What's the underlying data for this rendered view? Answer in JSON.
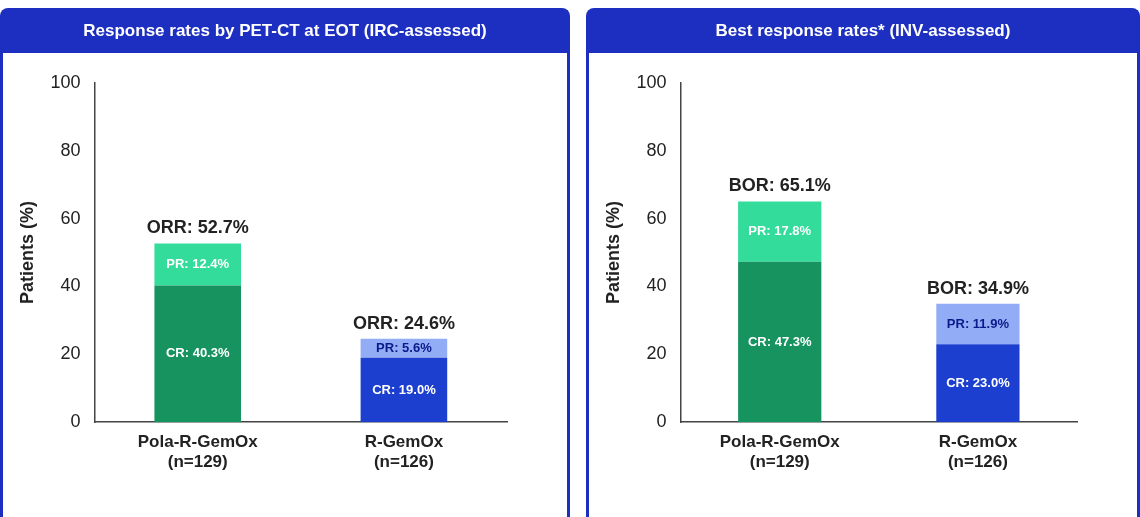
{
  "chart_data": [
    {
      "type": "bar",
      "title": "Response rates by PET-CT at EOT (IRC-assessed)",
      "ylabel": "Patients (%)",
      "categories": [
        "Pola-R-GemOx\n(n=129)",
        "R-GemOx\n(n=126)"
      ],
      "stacked": true,
      "ylim": [
        0,
        100
      ],
      "yticks": [
        0,
        20,
        40,
        60,
        80,
        100
      ],
      "series": [
        {
          "values": [
            40.3,
            19.0
          ],
          "colors": [
            "#17935f",
            "#1d3fcf"
          ],
          "value_labels": [
            "CR: 40.3%",
            "CR: 19.0%"
          ]
        },
        {
          "values": [
            12.4,
            5.6
          ],
          "colors": [
            "#33dc9a",
            "#93acf6"
          ],
          "value_labels": [
            "PR: 12.4%",
            "PR: 5.6%"
          ]
        }
      ],
      "totals": [
        "ORR: 52.7%",
        "ORR: 24.6%"
      ]
    },
    {
      "type": "bar",
      "title": "Best response rates* (INV-assessed)",
      "ylabel": "Patients (%)",
      "categories": [
        "Pola-R-GemOx\n(n=129)",
        "R-GemOx\n(n=126)"
      ],
      "stacked": true,
      "ylim": [
        0,
        100
      ],
      "yticks": [
        0,
        20,
        40,
        60,
        80,
        100
      ],
      "series": [
        {
          "values": [
            47.3,
            23.0
          ],
          "colors": [
            "#17935f",
            "#1d3fcf"
          ],
          "value_labels": [
            "CR: 47.3%",
            "CR: 23.0%"
          ]
        },
        {
          "values": [
            17.8,
            11.9
          ],
          "colors": [
            "#33dc9a",
            "#93acf6"
          ],
          "value_labels": [
            "PR: 17.8%",
            "PR: 11.9%"
          ]
        }
      ],
      "totals": [
        "BOR: 65.1%",
        "BOR: 34.9%"
      ]
    }
  ]
}
